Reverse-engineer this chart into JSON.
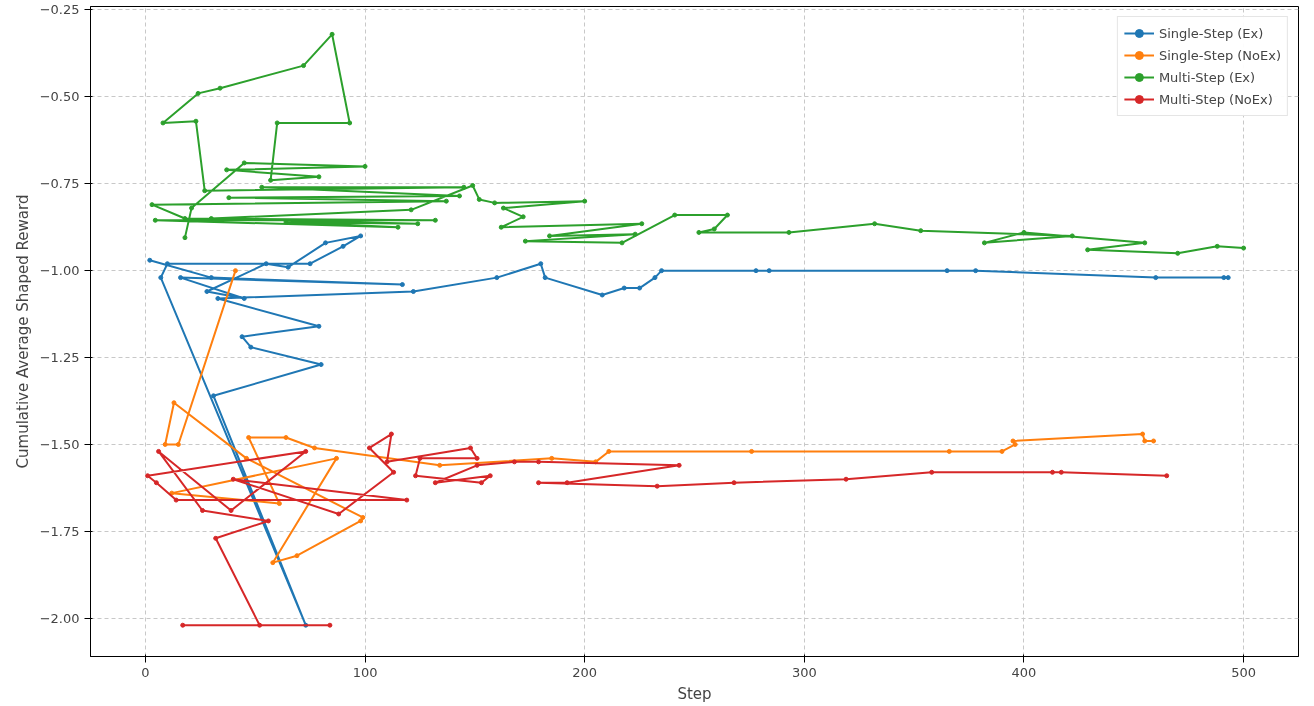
{
  "chart_data": {
    "type": "line",
    "xlabel": "Step",
    "ylabel": "Cumulative Average Shaped Reward",
    "xlim": [
      -25,
      525
    ],
    "ylim": [
      -2.11,
      -0.24
    ],
    "xticks": [
      0,
      100,
      200,
      300,
      400,
      500
    ],
    "yticks": [
      {
        "value": -2.0,
        "label": "−2.00"
      },
      {
        "value": -1.75,
        "label": "−1.75"
      },
      {
        "value": -1.5,
        "label": "−1.50"
      },
      {
        "value": -1.25,
        "label": "−1.25"
      },
      {
        "value": -1.0,
        "label": "−1.00"
      },
      {
        "value": -0.75,
        "label": "−0.75"
      },
      {
        "value": -0.5,
        "label": "−0.50"
      },
      {
        "value": -0.25,
        "label": "−0.25"
      }
    ],
    "grid": true,
    "legend": "top right",
    "marker": "circle",
    "line_style": "solid",
    "series": [
      {
        "name": "Single-Step (Ex)",
        "color": "#1f77b4",
        "x": [
          2,
          30,
          117,
          16,
          45,
          28,
          55,
          65,
          82,
          98,
          90,
          75,
          10,
          7,
          73,
          31,
          80,
          48,
          44,
          79,
          33,
          122,
          160,
          180,
          182,
          208,
          218,
          225,
          232,
          235,
          278,
          284,
          365,
          378,
          460,
          491,
          493
        ],
        "values": [
          -0.97,
          -1.02,
          -1.04,
          -1.02,
          -1.08,
          -1.06,
          -0.98,
          -0.99,
          -0.92,
          -0.9,
          -0.93,
          -0.98,
          -0.98,
          -1.02,
          -2.02,
          -1.36,
          -1.27,
          -1.22,
          -1.19,
          -1.16,
          -1.08,
          -1.06,
          -1.02,
          -0.98,
          -1.02,
          -1.07,
          -1.05,
          -1.05,
          -1.02,
          -1.0,
          -1.0,
          -1.0,
          -1.0,
          -1.0,
          -1.02,
          -1.02,
          -1.02
        ]
      },
      {
        "name": "Single-Step (NoEx)",
        "color": "#ff7f0e",
        "x": [
          41,
          15,
          9,
          13,
          46,
          99,
          98,
          69,
          58,
          87,
          12,
          61,
          47,
          64,
          77,
          134,
          185,
          205,
          211,
          276,
          366,
          390,
          396,
          395,
          454,
          455,
          459
        ],
        "values": [
          -1.0,
          -1.5,
          -1.5,
          -1.38,
          -1.54,
          -1.71,
          -1.72,
          -1.82,
          -1.84,
          -1.54,
          -1.64,
          -1.67,
          -1.48,
          -1.48,
          -1.51,
          -1.56,
          -1.54,
          -1.55,
          -1.52,
          -1.52,
          -1.52,
          -1.52,
          -1.5,
          -1.49,
          -1.47,
          -1.49,
          -1.49
        ]
      },
      {
        "name": "Multi-Step (Ex)",
        "color": "#2ca02c",
        "x": [
          18,
          21,
          45,
          100,
          37,
          79,
          57,
          60,
          93,
          85,
          72,
          34,
          24,
          8,
          23,
          27,
          145,
          53,
          143,
          38,
          137,
          3,
          18,
          132,
          4.5,
          115,
          64,
          124,
          30,
          121,
          149,
          152,
          159,
          200,
          163,
          172,
          162,
          226,
          184,
          223,
          173,
          217,
          241,
          265,
          259,
          252,
          293,
          332,
          353,
          422,
          382,
          400,
          455,
          429,
          470,
          488,
          500
        ],
        "values": [
          -0.905,
          -0.82,
          -0.69,
          -0.7,
          -0.71,
          -0.73,
          -0.74,
          -0.575,
          -0.575,
          -0.32,
          -0.41,
          -0.475,
          -0.49,
          -0.575,
          -0.57,
          -0.77,
          -0.76,
          -0.76,
          -0.785,
          -0.79,
          -0.8,
          -0.81,
          -0.85,
          -0.855,
          -0.855,
          -0.875,
          -0.86,
          -0.865,
          -0.85,
          -0.825,
          -0.755,
          -0.795,
          -0.805,
          -0.8,
          -0.82,
          -0.845,
          -0.875,
          -0.865,
          -0.9,
          -0.895,
          -0.915,
          -0.92,
          -0.84,
          -0.84,
          -0.88,
          -0.89,
          -0.89,
          -0.865,
          -0.885,
          -0.9,
          -0.92,
          -0.89,
          -0.92,
          -0.94,
          -0.95,
          -0.93,
          -0.935
        ]
      },
      {
        "name": "Multi-Step (NoEx)",
        "color": "#d62728",
        "x": [
          17,
          84,
          52,
          32,
          56,
          26,
          6,
          39,
          73,
          1,
          5,
          14,
          119,
          40,
          88,
          113,
          102,
          112,
          110,
          148,
          151,
          125,
          123,
          153,
          157,
          132,
          151,
          168,
          179,
          243,
          192,
          179,
          233,
          268,
          319,
          358,
          413,
          417,
          465
        ],
        "values": [
          -2.02,
          -2.02,
          -2.02,
          -1.77,
          -1.72,
          -1.69,
          -1.52,
          -1.69,
          -1.52,
          -1.59,
          -1.61,
          -1.66,
          -1.66,
          -1.6,
          -1.7,
          -1.58,
          -1.51,
          -1.47,
          -1.55,
          -1.51,
          -1.54,
          -1.54,
          -1.59,
          -1.61,
          -1.59,
          -1.61,
          -1.56,
          -1.55,
          -1.55,
          -1.56,
          -1.61,
          -1.61,
          -1.62,
          -1.61,
          -1.6,
          -1.58,
          -1.58,
          -1.58,
          -1.59
        ]
      }
    ]
  }
}
